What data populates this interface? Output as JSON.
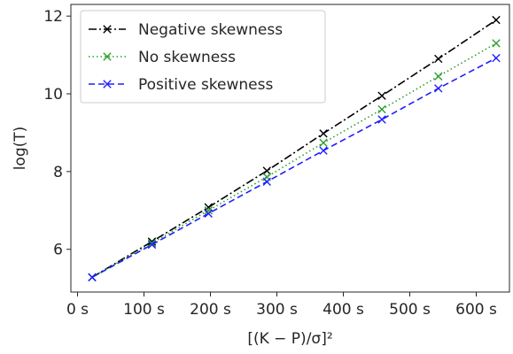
{
  "chart_data": {
    "type": "line",
    "xlabel": "[(K − P)/σ]²",
    "ylabel": "log(T)",
    "xlim": [
      -10,
      650
    ],
    "ylim": [
      4.9,
      12.3
    ],
    "x_ticks": [
      0,
      100,
      200,
      300,
      400,
      500,
      600
    ],
    "x_tick_labels": [
      "0 s",
      "100 s",
      "200 s",
      "300 s",
      "400 s",
      "500 s",
      "600 s"
    ],
    "y_ticks": [
      6,
      8,
      10,
      12
    ],
    "y_tick_labels": [
      "6",
      "8",
      "10",
      "12"
    ],
    "grid": false,
    "legend_position": "top-left",
    "series": [
      {
        "name": "Negative skewness",
        "color": "#000000",
        "line_style": "dashdot",
        "marker": "x",
        "x": [
          22,
          112,
          197,
          285,
          370,
          458,
          543,
          630
        ],
        "y": [
          5.28,
          6.2,
          7.08,
          8.02,
          8.98,
          9.95,
          10.9,
          11.9
        ]
      },
      {
        "name": "No skewness",
        "color": "#2ca02c",
        "line_style": "dotted",
        "marker": "x",
        "x": [
          22,
          112,
          197,
          285,
          370,
          458,
          543,
          630
        ],
        "y": [
          5.28,
          6.16,
          7.0,
          7.86,
          8.74,
          9.6,
          10.45,
          11.3
        ]
      },
      {
        "name": "Positive skewness",
        "color": "#1f1fff",
        "line_style": "dashed",
        "marker": "x",
        "x": [
          22,
          112,
          197,
          285,
          370,
          458,
          543,
          630
        ],
        "y": [
          5.28,
          6.12,
          6.92,
          7.74,
          8.54,
          9.34,
          10.14,
          10.92
        ]
      }
    ]
  }
}
